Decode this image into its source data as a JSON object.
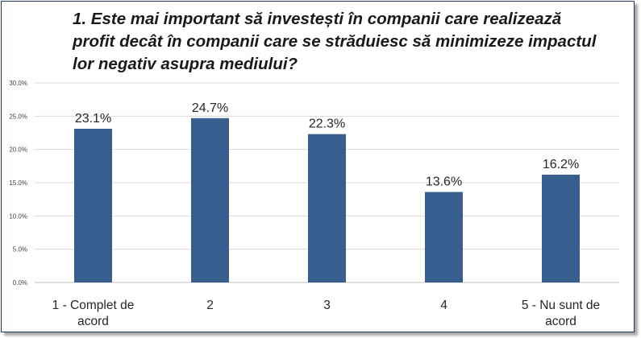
{
  "chart_data": {
    "type": "bar",
    "title": "1. Este mai important să investești în companii care realizează profit decât în companii care se străduiesc să minimizeze impactul lor negativ asupra mediului?",
    "categories": [
      [
        "1 - Complet de",
        "acord"
      ],
      [
        "2"
      ],
      [
        "3"
      ],
      [
        "4"
      ],
      [
        "5 - Nu sunt de",
        "acord"
      ]
    ],
    "values": [
      23.1,
      24.7,
      22.3,
      13.6,
      16.2
    ],
    "data_labels": [
      "23.1%",
      "24.7%",
      "22.3%",
      "13.6%",
      "16.2%"
    ],
    "y_ticks": [
      "0.0%",
      "5.0%",
      "10.0%",
      "15.0%",
      "20.0%",
      "25.0%",
      "30.0%"
    ],
    "ylim": [
      0,
      30
    ],
    "grid": true,
    "bar_color": "#375e8f",
    "grid_color": "#d9d9d9"
  }
}
